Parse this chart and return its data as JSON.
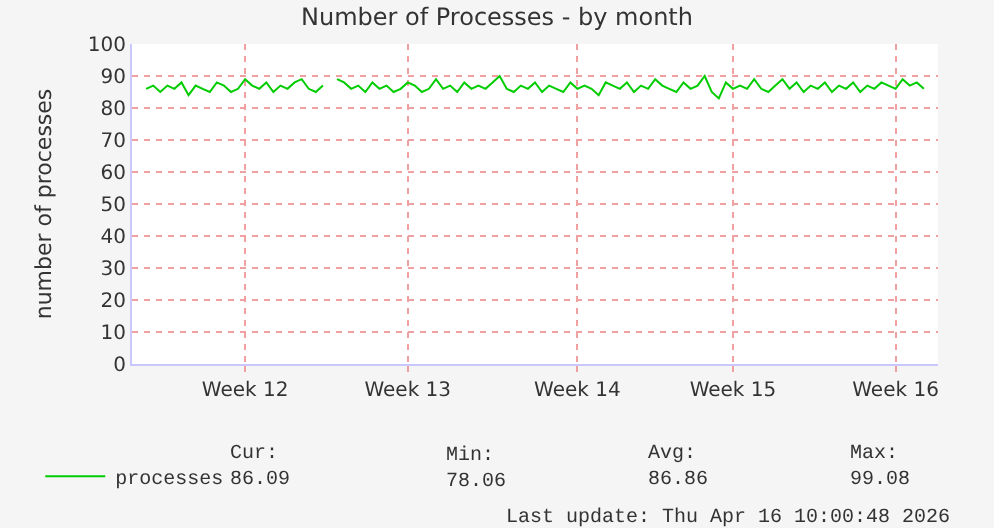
{
  "chart_data": {
    "type": "line",
    "title": "Number of Processes - by month",
    "ylabel": "number of processes",
    "categories": [
      null,
      null,
      null,
      null,
      null,
      null,
      null,
      null,
      null,
      null,
      null,
      null,
      null,
      null,
      "Week 12",
      null,
      null,
      null,
      null,
      null,
      null,
      null,
      null,
      null,
      null,
      null,
      null,
      null,
      null,
      null,
      null,
      null,
      null,
      null,
      null,
      null,
      null,
      "Week 13",
      null,
      null,
      null,
      null,
      null,
      null,
      null,
      null,
      null,
      null,
      null,
      null,
      null,
      null,
      null,
      null,
      null,
      null,
      null,
      null,
      null,
      null,
      null,
      "Week 14",
      null,
      null,
      null,
      null,
      null,
      null,
      null,
      null,
      null,
      null,
      null,
      null,
      null,
      null,
      null,
      null,
      null,
      null,
      null,
      null,
      null,
      "Week 15",
      null,
      null,
      null,
      null,
      null,
      null,
      null,
      null,
      null,
      null,
      null,
      null,
      null,
      null,
      null,
      null,
      null,
      null,
      null,
      null,
      null,
      null,
      "Week 16",
      null,
      null,
      null,
      null
    ],
    "series": [
      {
        "name": "processes",
        "color": "#00cc00",
        "values": [
          86,
          87,
          85,
          87,
          86,
          88,
          84,
          87,
          86,
          85,
          88,
          87,
          85,
          86,
          89,
          87,
          86,
          88,
          85,
          87,
          86,
          88,
          89,
          86,
          85,
          87,
          null,
          89,
          88,
          86,
          87,
          85,
          88,
          86,
          87,
          85,
          86,
          88,
          87,
          85,
          86,
          89,
          86,
          87,
          85,
          88,
          86,
          87,
          86,
          88,
          90,
          86,
          85,
          87,
          86,
          88,
          85,
          87,
          86,
          85,
          88,
          86,
          87,
          86,
          84,
          88,
          87,
          86,
          88,
          85,
          87,
          86,
          89,
          87,
          86,
          85,
          88,
          86,
          87,
          90,
          85,
          83,
          88,
          86,
          87,
          86,
          89,
          86,
          85,
          87,
          89,
          86,
          88,
          85,
          87,
          86,
          88,
          85,
          87,
          86,
          88,
          85,
          87,
          86,
          88,
          87,
          86,
          89,
          87,
          88,
          86
        ]
      }
    ],
    "ylim": [
      0,
      100
    ],
    "yticks": [
      0,
      10,
      20,
      30,
      40,
      50,
      60,
      70,
      80,
      90,
      100
    ],
    "grid": true,
    "legend": "bottom left",
    "annotations": [
      "Cur:\n86.09",
      "Min:\n78.06",
      "Avg:\n86.86",
      "Max:\n99.08",
      "Last update: Thu Apr 16 10:00:48 2026"
    ]
  }
}
